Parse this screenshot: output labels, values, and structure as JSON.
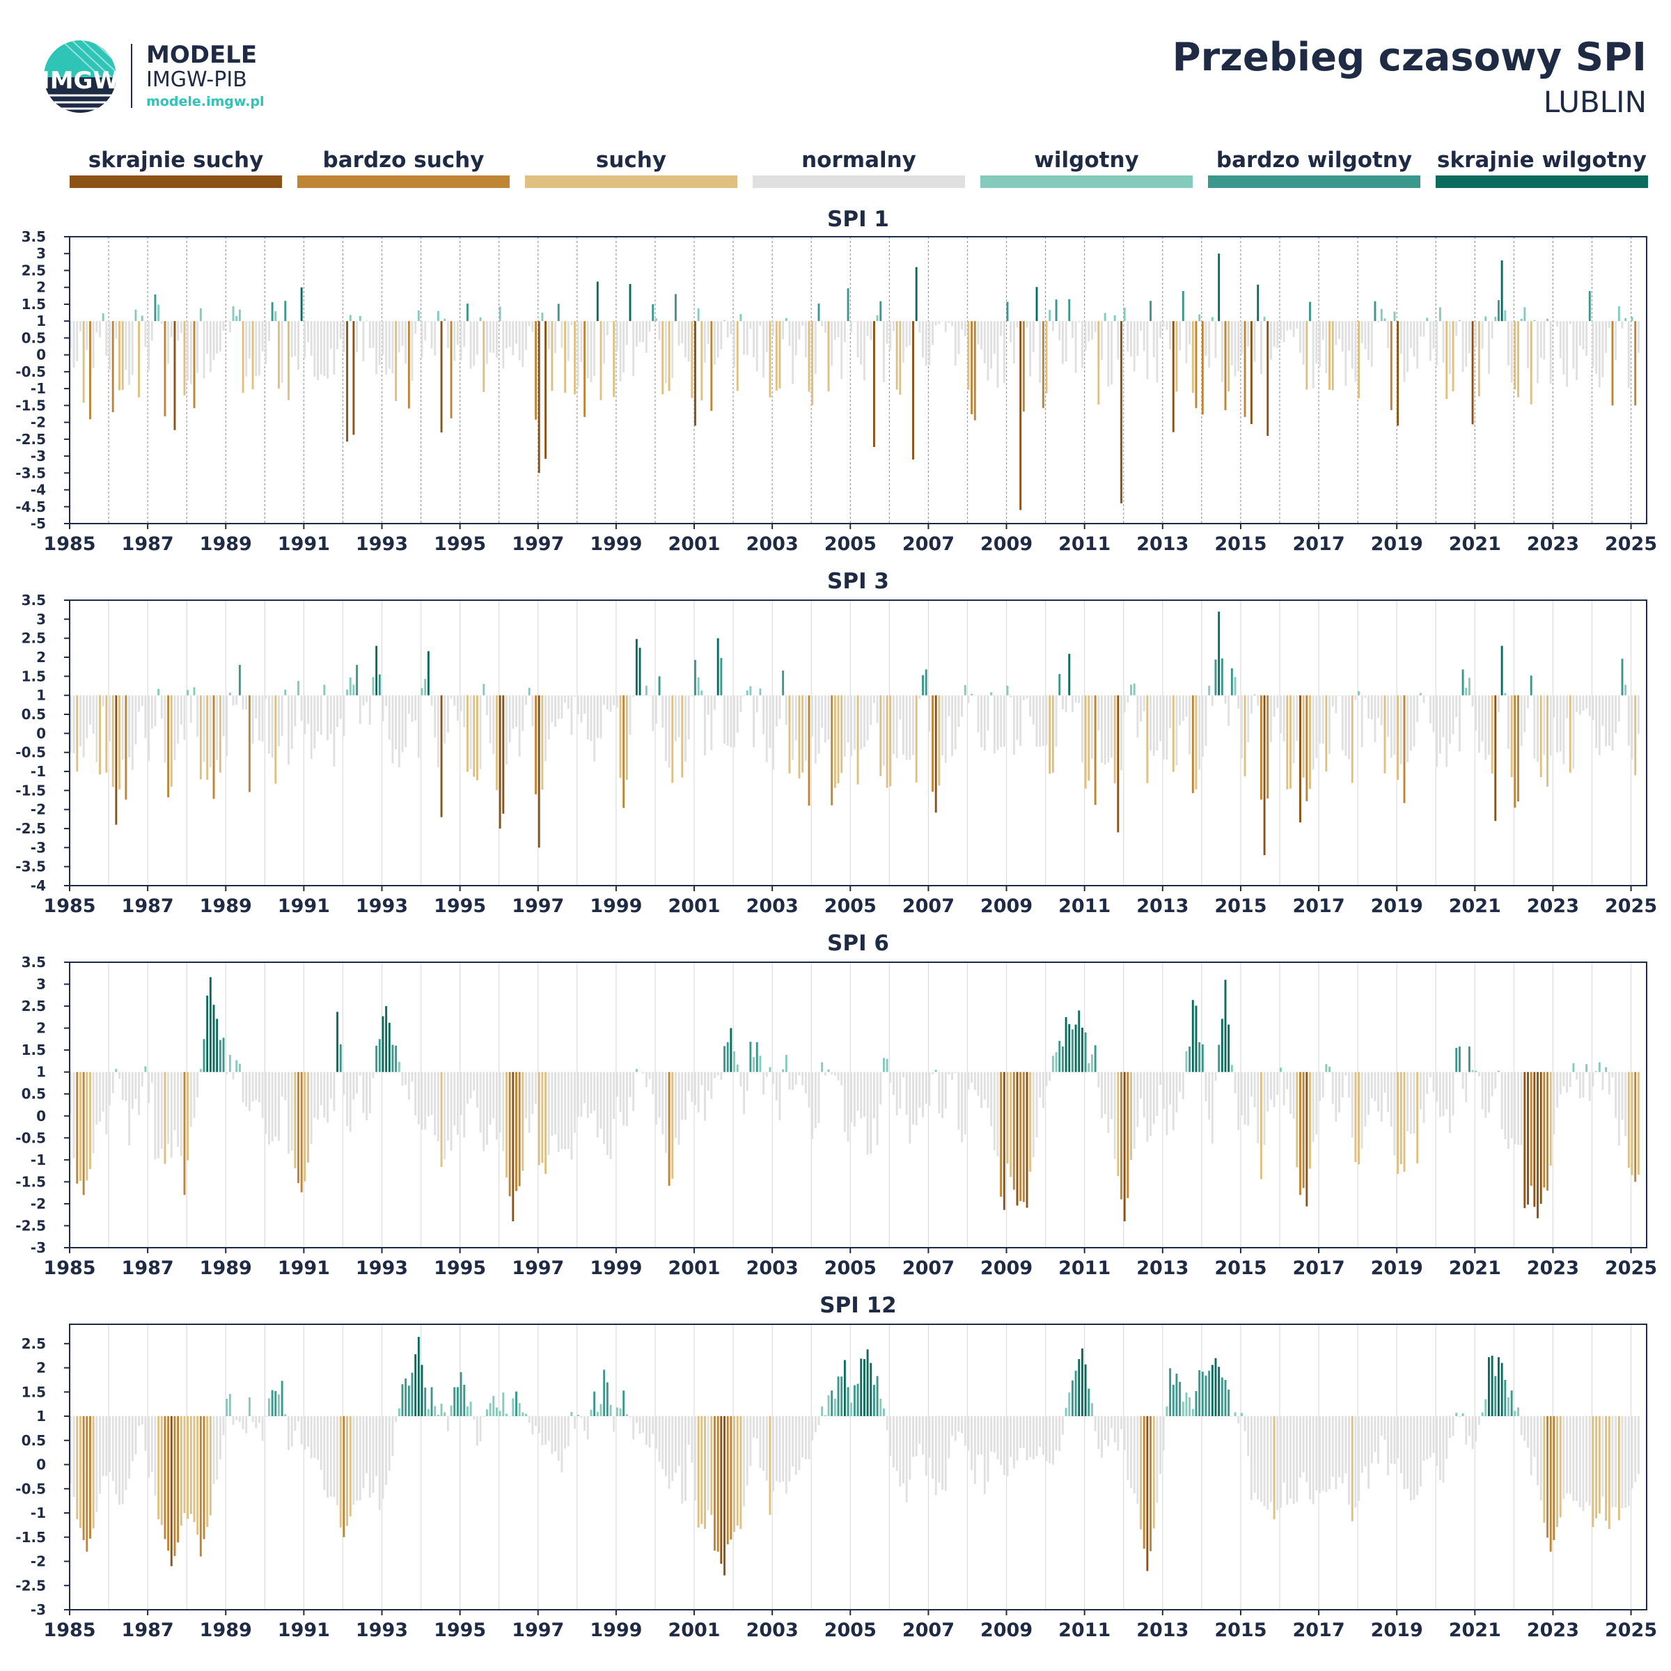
{
  "header": {
    "logo_line1": "MODELE",
    "logo_line2": "IMGW-PIB",
    "logo_url": "modele.imgw.pl",
    "logo_emblem": "IMGW",
    "title": "Przebieg czasowy SPI",
    "subtitle": "LUBLIN"
  },
  "legend": [
    {
      "label": "skrajnie suchy",
      "color": "#8d5216"
    },
    {
      "label": "bardzo suchy",
      "color": "#bf8434"
    },
    {
      "label": "suchy",
      "color": "#dfc080"
    },
    {
      "label": "normalny",
      "color": "#e0e0e0"
    },
    {
      "label": "wilgotny",
      "color": "#85cbbd"
    },
    {
      "label": "bardzo wilgotny",
      "color": "#3a988c"
    },
    {
      "label": "skrajnie wilgotny",
      "color": "#0b6b5c"
    }
  ],
  "chart_data": [
    {
      "type": "bar",
      "title": "SPI 1",
      "baseline": 1,
      "ylim": [
        -5,
        3.5
      ],
      "yticks": [
        3.5,
        3,
        2.5,
        2,
        1.5,
        1,
        0.5,
        0,
        -0.5,
        -1,
        -1.5,
        -2,
        -2.5,
        -3,
        -3.5,
        -4,
        -4.5,
        -5
      ],
      "xlim": [
        1985.0,
        2025.4
      ],
      "xticks": [
        1985,
        1987,
        1989,
        1991,
        1993,
        1995,
        1997,
        1999,
        2001,
        2003,
        2005,
        2007,
        2009,
        2011,
        2013,
        2015,
        2017,
        2019,
        2021,
        2023,
        2025
      ],
      "gridlines": "dashed-yearly",
      "notable_values": [
        {
          "x": 1986.1,
          "y": -1.7
        },
        {
          "x": 1990.9,
          "y": 2.0
        },
        {
          "x": 1994.5,
          "y": -2.3
        },
        {
          "x": 1997.0,
          "y": -3.5
        },
        {
          "x": 1999.3,
          "y": 2.1
        },
        {
          "x": 2001.0,
          "y": -2.1
        },
        {
          "x": 2006.6,
          "y": -3.1
        },
        {
          "x": 2006.7,
          "y": 2.6
        },
        {
          "x": 2009.3,
          "y": -4.6
        },
        {
          "x": 2011.9,
          "y": -4.4
        },
        {
          "x": 2014.4,
          "y": 3.0
        },
        {
          "x": 2015.7,
          "y": -2.4
        },
        {
          "x": 2019.0,
          "y": -2.1
        },
        {
          "x": 2021.7,
          "y": 2.8
        },
        {
          "x": 2025.1,
          "y": -1.5
        }
      ],
      "values": []
    },
    {
      "type": "bar",
      "title": "SPI 3",
      "baseline": 1,
      "ylim": [
        -4,
        3.5
      ],
      "yticks": [
        3.5,
        3,
        2.5,
        2,
        1.5,
        1,
        0.5,
        0,
        -0.5,
        -1,
        -1.5,
        -2,
        -2.5,
        -3,
        -3.5,
        -4
      ],
      "xlim": [
        1985.0,
        2025.4
      ],
      "xticks": [
        1985,
        1987,
        1989,
        1991,
        1993,
        1995,
        1997,
        1999,
        2001,
        2003,
        2005,
        2007,
        2009,
        2011,
        2013,
        2015,
        2017,
        2019,
        2021,
        2023,
        2025
      ],
      "gridlines": "solid-yearly",
      "notable_values": [
        {
          "x": 1986.2,
          "y": -2.4
        },
        {
          "x": 1992.8,
          "y": 2.3
        },
        {
          "x": 1994.5,
          "y": -2.2
        },
        {
          "x": 1996.0,
          "y": -2.5
        },
        {
          "x": 1997.0,
          "y": -3.0
        },
        {
          "x": 2001.6,
          "y": 2.5
        },
        {
          "x": 2011.8,
          "y": -2.6
        },
        {
          "x": 2014.4,
          "y": 3.2
        },
        {
          "x": 2015.6,
          "y": -3.2
        },
        {
          "x": 2021.7,
          "y": 2.3
        },
        {
          "x": 2025.1,
          "y": -1.1
        }
      ],
      "values": []
    },
    {
      "type": "bar",
      "title": "SPI 6",
      "baseline": 1,
      "ylim": [
        -3,
        3.5
      ],
      "yticks": [
        3.5,
        3,
        2.5,
        2,
        1.5,
        1,
        0.5,
        0,
        -0.5,
        -1,
        -1.5,
        -2,
        -2.5,
        -3
      ],
      "xlim": [
        1985.0,
        2025.4
      ],
      "xticks": [
        1985,
        1987,
        1989,
        1991,
        1993,
        1995,
        1997,
        1999,
        2001,
        2003,
        2005,
        2007,
        2009,
        2011,
        2013,
        2015,
        2017,
        2019,
        2021,
        2023,
        2025
      ],
      "gridlines": "solid-yearly",
      "notable_values": [
        {
          "x": 1985.3,
          "y": -1.8
        },
        {
          "x": 1987.9,
          "y": -1.8
        },
        {
          "x": 1993.1,
          "y": 2.5
        },
        {
          "x": 1996.3,
          "y": -2.4
        },
        {
          "x": 2001.9,
          "y": 2.0
        },
        {
          "x": 2010.8,
          "y": 2.4
        },
        {
          "x": 2012.0,
          "y": -2.4
        },
        {
          "x": 2014.6,
          "y": 3.1
        },
        {
          "x": 2022.8,
          "y": -1.7
        },
        {
          "x": 2025.1,
          "y": -1.5
        }
      ],
      "values": []
    },
    {
      "type": "bar",
      "title": "SPI 12",
      "baseline": 1,
      "ylim": [
        -3,
        2.9
      ],
      "yticks": [
        2.5,
        2,
        1.5,
        1,
        0.5,
        0,
        -0.5,
        -1,
        -1.5,
        -2,
        -2.5,
        -3
      ],
      "xlim": [
        1985.0,
        2025.4
      ],
      "xticks": [
        1985,
        1987,
        1989,
        1991,
        1993,
        1995,
        1997,
        1999,
        2001,
        2003,
        2005,
        2007,
        2009,
        2011,
        2013,
        2015,
        2017,
        2019,
        2021,
        2023,
        2025
      ],
      "gridlines": "solid-yearly",
      "notable_values": [
        {
          "x": 1985.4,
          "y": -1.8
        },
        {
          "x": 1987.6,
          "y": -2.1
        },
        {
          "x": 1988.3,
          "y": -1.9
        },
        {
          "x": 1992.0,
          "y": -1.5
        },
        {
          "x": 2010.9,
          "y": 2.4
        },
        {
          "x": 2012.6,
          "y": -2.2
        },
        {
          "x": 2014.3,
          "y": 2.2
        },
        {
          "x": 2022.9,
          "y": -1.8
        },
        {
          "x": 2025.2,
          "y": -0.2
        }
      ],
      "values": []
    }
  ]
}
